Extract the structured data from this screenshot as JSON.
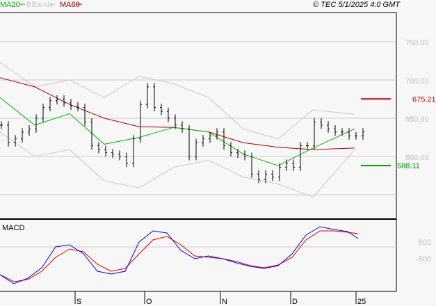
{
  "legend": [
    {
      "label": "MA20",
      "color": "#00bb00"
    },
    {
      "label": "BBands",
      "color": "#c8c8c8"
    },
    {
      "label": "MA60",
      "color": "#990000"
    }
  ],
  "copyright": "© TEC 5/1/2025 4:0 GMT",
  "chart_data": {
    "type": "line",
    "price": {
      "ylim": [
        550,
        775
      ],
      "yticks": [
        {
          "v": 750,
          "label": "750.00"
        },
        {
          "v": 700,
          "label": "700.00"
        },
        {
          "v": 650,
          "label": "650.00"
        },
        {
          "v": 600,
          "label": "600.00"
        },
        {
          "v": 550,
          "label": ""
        }
      ],
      "close_t_step": 2,
      "closes": [
        641,
        618,
        623,
        632,
        636,
        650,
        664,
        673,
        675,
        670,
        666,
        664,
        645,
        614,
        609,
        605,
        603,
        600,
        591,
        623,
        668,
        691,
        664,
        659,
        650,
        641,
        636,
        600,
        618,
        623,
        627,
        632,
        614,
        605,
        603,
        600,
        577,
        570,
        577,
        573,
        586,
        591,
        586,
        614,
        614,
        645,
        641,
        636,
        632,
        632,
        627,
        627,
        632
      ],
      "ma_t": [
        0,
        10,
        20,
        30,
        40,
        50,
        60,
        70,
        80,
        90,
        102
      ],
      "ma20": [
        677,
        641,
        656,
        616,
        625,
        638,
        632,
        603,
        588,
        611,
        636
      ],
      "ma60": [
        703,
        691,
        668,
        650,
        639,
        638,
        632,
        618,
        612,
        609,
        611
      ],
      "bb_upper": [
        723,
        691,
        700,
        677,
        705,
        695,
        677,
        636,
        623,
        661,
        655
      ],
      "bb_lower": [
        632,
        600,
        609,
        568,
        559,
        586,
        595,
        573,
        564,
        547,
        609
      ],
      "levels": [
        {
          "value": 675.21,
          "label": "675.21",
          "color": "#cc0000"
        },
        {
          "value": 588.11,
          "label": "588.11",
          "color": "#009900"
        }
      ]
    },
    "macd": {
      "title": "MACD",
      "yticks": [
        {
          "v": 500,
          "label": "500"
        },
        {
          "v": -500,
          "label": "-500"
        }
      ],
      "t": [
        0,
        4,
        8,
        12,
        16,
        20,
        24,
        28,
        32,
        36,
        40,
        44,
        48,
        52,
        56,
        60,
        64,
        68,
        72,
        76,
        80,
        84,
        88,
        92,
        96,
        100,
        103
      ],
      "macd": [
        -1470,
        -2016,
        -1680,
        -1050,
        210,
        336,
        -210,
        -1260,
        -1428,
        -1260,
        504,
        1176,
        1050,
        0,
        -504,
        -336,
        -504,
        -756,
        -966,
        -1092,
        -924,
        -210,
        924,
        1428,
        1260,
        1134,
        714
      ],
      "signal": [
        -1470,
        -1890,
        -1764,
        -1260,
        -420,
        84,
        -84,
        -840,
        -1260,
        -1092,
        -210,
        630,
        840,
        336,
        -336,
        -420,
        -504,
        -672,
        -924,
        -1050,
        -882,
        -420,
        630,
        1176,
        1176,
        1092,
        1008
      ]
    },
    "xticks": [
      {
        "t": 21.6,
        "label": "S"
      },
      {
        "t": 41.6,
        "label": "O"
      },
      {
        "t": 63.4,
        "label": "N"
      },
      {
        "t": 83.6,
        "label": "D"
      },
      {
        "t": 102.4,
        "label": "25"
      }
    ]
  }
}
